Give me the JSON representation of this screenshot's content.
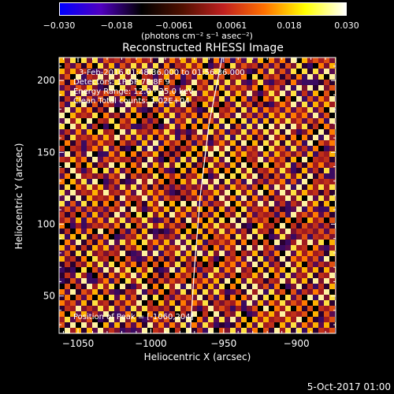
{
  "chart_data": {
    "type": "heatmap",
    "title": "Reconstructed RHESSI Image",
    "xlabel": "Heliocentric X (arcsec)",
    "ylabel": "Heliocentric Y (arcsec)",
    "xlim": [
      -1063,
      -873
    ],
    "ylim": [
      24,
      216
    ],
    "x_ticks": [
      -1050,
      -1000,
      -950,
      -900
    ],
    "x_tick_labels": [
      "−1050",
      "−1000",
      "−950",
      "−900"
    ],
    "y_ticks": [
      50,
      100,
      150,
      200
    ],
    "y_tick_labels": [
      "50",
      "100",
      "150",
      "200"
    ],
    "limb_curve": [
      [
        -973,
        24
      ],
      [
        -970,
        70
      ],
      [
        -966,
        120
      ],
      [
        -960,
        170
      ],
      [
        -951,
        216
      ]
    ],
    "colorbar": {
      "range": [
        -0.03,
        0.03
      ],
      "tick_labels": [
        "−0.030",
        "−0.018",
        "−0.0061",
        "0.0061",
        "0.018",
        "0.030"
      ],
      "units_label": "(photons cm⁻² s⁻¹ asec⁻²)",
      "colors": [
        "#0000ff",
        "#5000c0",
        "#000000",
        "#501000",
        "#c02020",
        "#ff7000",
        "#ffff00",
        "#ffffff"
      ]
    }
  },
  "annotations": {
    "time_range": "3-Feb-2016 01:48:36.000 to 01:56:36.000",
    "detectors": "Detectors: 1F 5F 7F 8F 9",
    "energy_range": "Energy Range: 12.0 - 25.0 keV",
    "clean_counts": "Clean    Total counts: 1.02E+04",
    "peak_position": "Position of Peak = [-1060,204]"
  },
  "footer": {
    "timestamp": "5-Oct-2017 01:00"
  }
}
